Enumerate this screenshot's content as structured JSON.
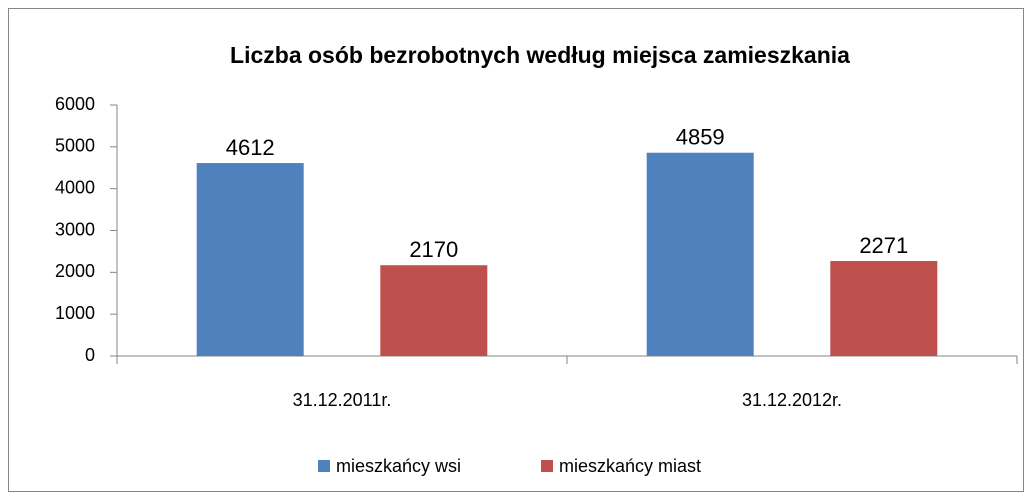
{
  "chart_data": {
    "type": "bar",
    "title": "Liczba osób bezrobotnych według miejsca zamieszkania",
    "categories": [
      "31.12.2011r.",
      "31.12.2012r."
    ],
    "series": [
      {
        "name": "mieszkańcy wsi",
        "color": "#4f81bd",
        "values": [
          4612,
          4859
        ]
      },
      {
        "name": "mieszkańcy miast",
        "color": "#c0504d",
        "values": [
          2170,
          2271
        ]
      }
    ],
    "ylim": [
      0,
      6000
    ],
    "yticks": [
      0,
      1000,
      2000,
      3000,
      4000,
      5000,
      6000
    ],
    "grid": false,
    "legend": "bottom"
  }
}
